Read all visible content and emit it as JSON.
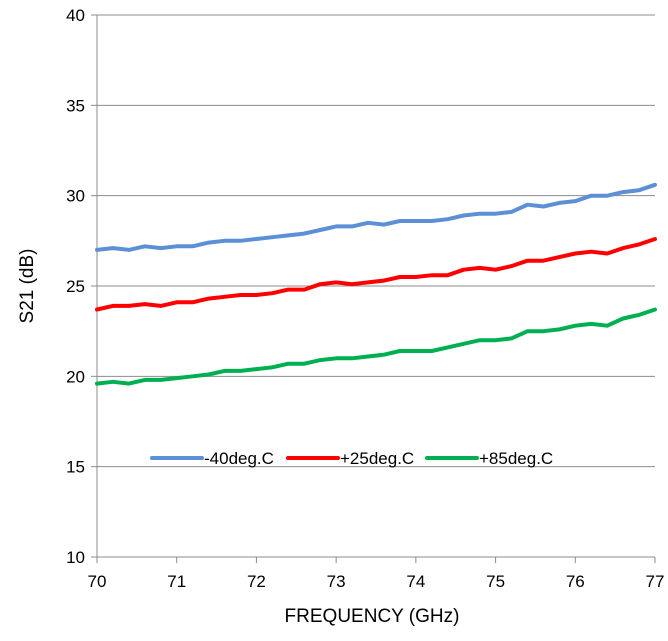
{
  "chart_data": {
    "type": "line",
    "title": "",
    "xlabel": "FREQUENCY (GHz)",
    "ylabel": "S21 (dB)",
    "xlim": [
      70,
      77
    ],
    "ylim": [
      10,
      40
    ],
    "x_ticks": [
      "70",
      "71",
      "72",
      "73",
      "74",
      "75",
      "76",
      "77"
    ],
    "y_ticks": [
      "10",
      "15",
      "20",
      "25",
      "30",
      "35",
      "40"
    ],
    "grid": "horizontal",
    "legend_position": "inside-lower",
    "x": [
      70.0,
      70.2,
      70.4,
      70.6,
      70.8,
      71.0,
      71.2,
      71.4,
      71.6,
      71.8,
      72.0,
      72.2,
      72.4,
      72.6,
      72.8,
      73.0,
      73.2,
      73.4,
      73.6,
      73.8,
      74.0,
      74.2,
      74.4,
      74.6,
      74.8,
      75.0,
      75.2,
      75.4,
      75.6,
      75.8,
      76.0,
      76.2,
      76.4,
      76.6,
      76.8,
      77.0
    ],
    "series": [
      {
        "name": "-40deg.C",
        "color": "#5b8fd6",
        "values": [
          27.0,
          27.1,
          27.0,
          27.2,
          27.1,
          27.2,
          27.2,
          27.4,
          27.5,
          27.5,
          27.6,
          27.7,
          27.8,
          27.9,
          28.1,
          28.3,
          28.3,
          28.5,
          28.4,
          28.6,
          28.6,
          28.6,
          28.7,
          28.9,
          29.0,
          29.0,
          29.1,
          29.5,
          29.4,
          29.6,
          29.7,
          30.0,
          30.0,
          30.2,
          30.3,
          30.6
        ]
      },
      {
        "name": "+25deg.C",
        "color": "#ff0000",
        "values": [
          23.7,
          23.9,
          23.9,
          24.0,
          23.9,
          24.1,
          24.1,
          24.3,
          24.4,
          24.5,
          24.5,
          24.6,
          24.8,
          24.8,
          25.1,
          25.2,
          25.1,
          25.2,
          25.3,
          25.5,
          25.5,
          25.6,
          25.6,
          25.9,
          26.0,
          25.9,
          26.1,
          26.4,
          26.4,
          26.6,
          26.8,
          26.9,
          26.8,
          27.1,
          27.3,
          27.6
        ]
      },
      {
        "name": "+85deg.C",
        "color": "#00b050",
        "values": [
          19.6,
          19.7,
          19.6,
          19.8,
          19.8,
          19.9,
          20.0,
          20.1,
          20.3,
          20.3,
          20.4,
          20.5,
          20.7,
          20.7,
          20.9,
          21.0,
          21.0,
          21.1,
          21.2,
          21.4,
          21.4,
          21.4,
          21.6,
          21.8,
          22.0,
          22.0,
          22.1,
          22.5,
          22.5,
          22.6,
          22.8,
          22.9,
          22.8,
          23.2,
          23.4,
          23.7
        ]
      }
    ]
  }
}
